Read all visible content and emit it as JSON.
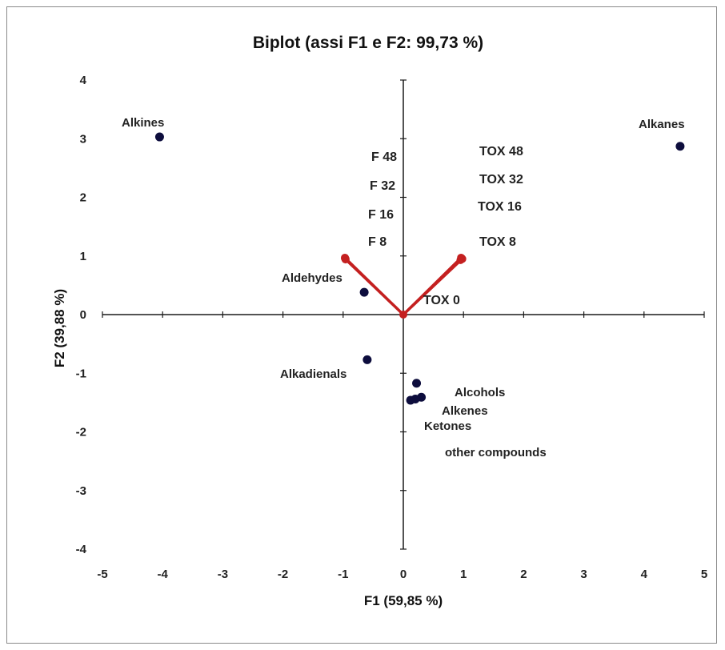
{
  "chart_data": {
    "type": "scatter",
    "title": "Biplot (assi F1 e F2: 99,73 %)",
    "xlabel": "F1 (59,85 %)",
    "ylabel": "F2 (39,88 %)",
    "xlim": [
      -5,
      5
    ],
    "ylim": [
      -4,
      4
    ],
    "x_ticks": [
      "-5",
      "-4",
      "-3",
      "-2",
      "-1",
      "0",
      "1",
      "2",
      "3",
      "4",
      "5"
    ],
    "y_ticks": [
      "4",
      "3",
      "2",
      "1",
      "0",
      "-1",
      "-2",
      "-3",
      "-4"
    ],
    "grid": false,
    "colors": {
      "points": "#0d0d3d",
      "vectors": "#c42020",
      "axes": "#1a1a1a"
    },
    "observations": [
      {
        "label": "Alkines",
        "x": -4.05,
        "y": 3.03
      },
      {
        "label": "Alkanes",
        "x": 4.6,
        "y": 2.87
      },
      {
        "label": "Aldehydes",
        "x": -0.65,
        "y": 0.38
      },
      {
        "label": "Alkadienals",
        "x": -0.6,
        "y": -0.77
      },
      {
        "label": "Alcohols",
        "x": 0.22,
        "y": -1.17
      },
      {
        "label": "Alkenes",
        "x": 0.3,
        "y": -1.41
      },
      {
        "label": "Ketones",
        "x": 0.2,
        "y": -1.44
      },
      {
        "label": "other compounds",
        "x": 0.12,
        "y": -1.46
      }
    ],
    "variables": [
      {
        "label": "F 48",
        "x": -0.97,
        "y": 0.97
      },
      {
        "label": "F 32",
        "x": -0.97,
        "y": 0.96
      },
      {
        "label": "F 16",
        "x": -0.96,
        "y": 0.95
      },
      {
        "label": "F 8",
        "x": -0.96,
        "y": 0.94
      },
      {
        "label": "TOX 48",
        "x": 0.96,
        "y": 0.97
      },
      {
        "label": "TOX 32",
        "x": 0.97,
        "y": 0.96
      },
      {
        "label": "TOX 16",
        "x": 0.97,
        "y": 0.95
      },
      {
        "label": "TOX 8",
        "x": 0.98,
        "y": 0.95
      },
      {
        "label": "TOX 0",
        "x": 0.95,
        "y": 0.93
      }
    ]
  }
}
